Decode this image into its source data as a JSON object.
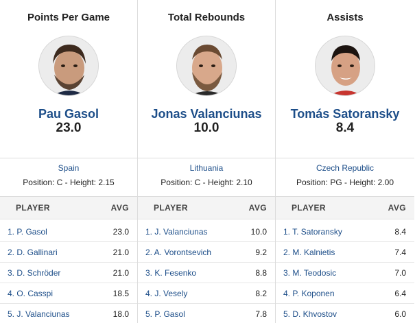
{
  "columns": [
    {
      "title": "Points Per Game",
      "leader": {
        "name": "Pau Gasol",
        "value": "23.0",
        "country": "Spain",
        "position_height": "Position: C - Height: 2.15"
      },
      "table_headers": {
        "player": "PLAYER",
        "avg": "AVG"
      },
      "rows": [
        {
          "name": "1. P. Gasol",
          "avg": "23.0"
        },
        {
          "name": "2. D. Gallinari",
          "avg": "21.0"
        },
        {
          "name": "3. D. Schröder",
          "avg": "21.0"
        },
        {
          "name": "4. O. Casspi",
          "avg": "18.5"
        },
        {
          "name": "5. J. Valanciunas",
          "avg": "18.0"
        }
      ]
    },
    {
      "title": "Total Rebounds",
      "leader": {
        "name": "Jonas Valanciunas",
        "value": "10.0",
        "country": "Lithuania",
        "position_height": "Position: C - Height: 2.10"
      },
      "table_headers": {
        "player": "PLAYER",
        "avg": "AVG"
      },
      "rows": [
        {
          "name": "1. J. Valanciunas",
          "avg": "10.0"
        },
        {
          "name": "2. A. Vorontsevich",
          "avg": "9.2"
        },
        {
          "name": "3. K. Fesenko",
          "avg": "8.8"
        },
        {
          "name": "4. J. Vesely",
          "avg": "8.2"
        },
        {
          "name": "5. P. Gasol",
          "avg": "7.8"
        }
      ]
    },
    {
      "title": "Assists",
      "leader": {
        "name": "Tomás Satoransky",
        "value": "8.4",
        "country": "Czech Republic",
        "position_height": "Position: PG - Height: 2.00"
      },
      "table_headers": {
        "player": "PLAYER",
        "avg": "AVG"
      },
      "rows": [
        {
          "name": "1. T. Satoransky",
          "avg": "8.4"
        },
        {
          "name": "2. M. Kalnietis",
          "avg": "7.4"
        },
        {
          "name": "3. M. Teodosic",
          "avg": "7.0"
        },
        {
          "name": "4. P. Koponen",
          "avg": "6.4"
        },
        {
          "name": "5. D. Khvostov",
          "avg": "6.0"
        }
      ]
    }
  ],
  "colors": {
    "link": "#1d4e89",
    "header_bg": "#f4f4f4",
    "divider": "#dcdcdc"
  }
}
